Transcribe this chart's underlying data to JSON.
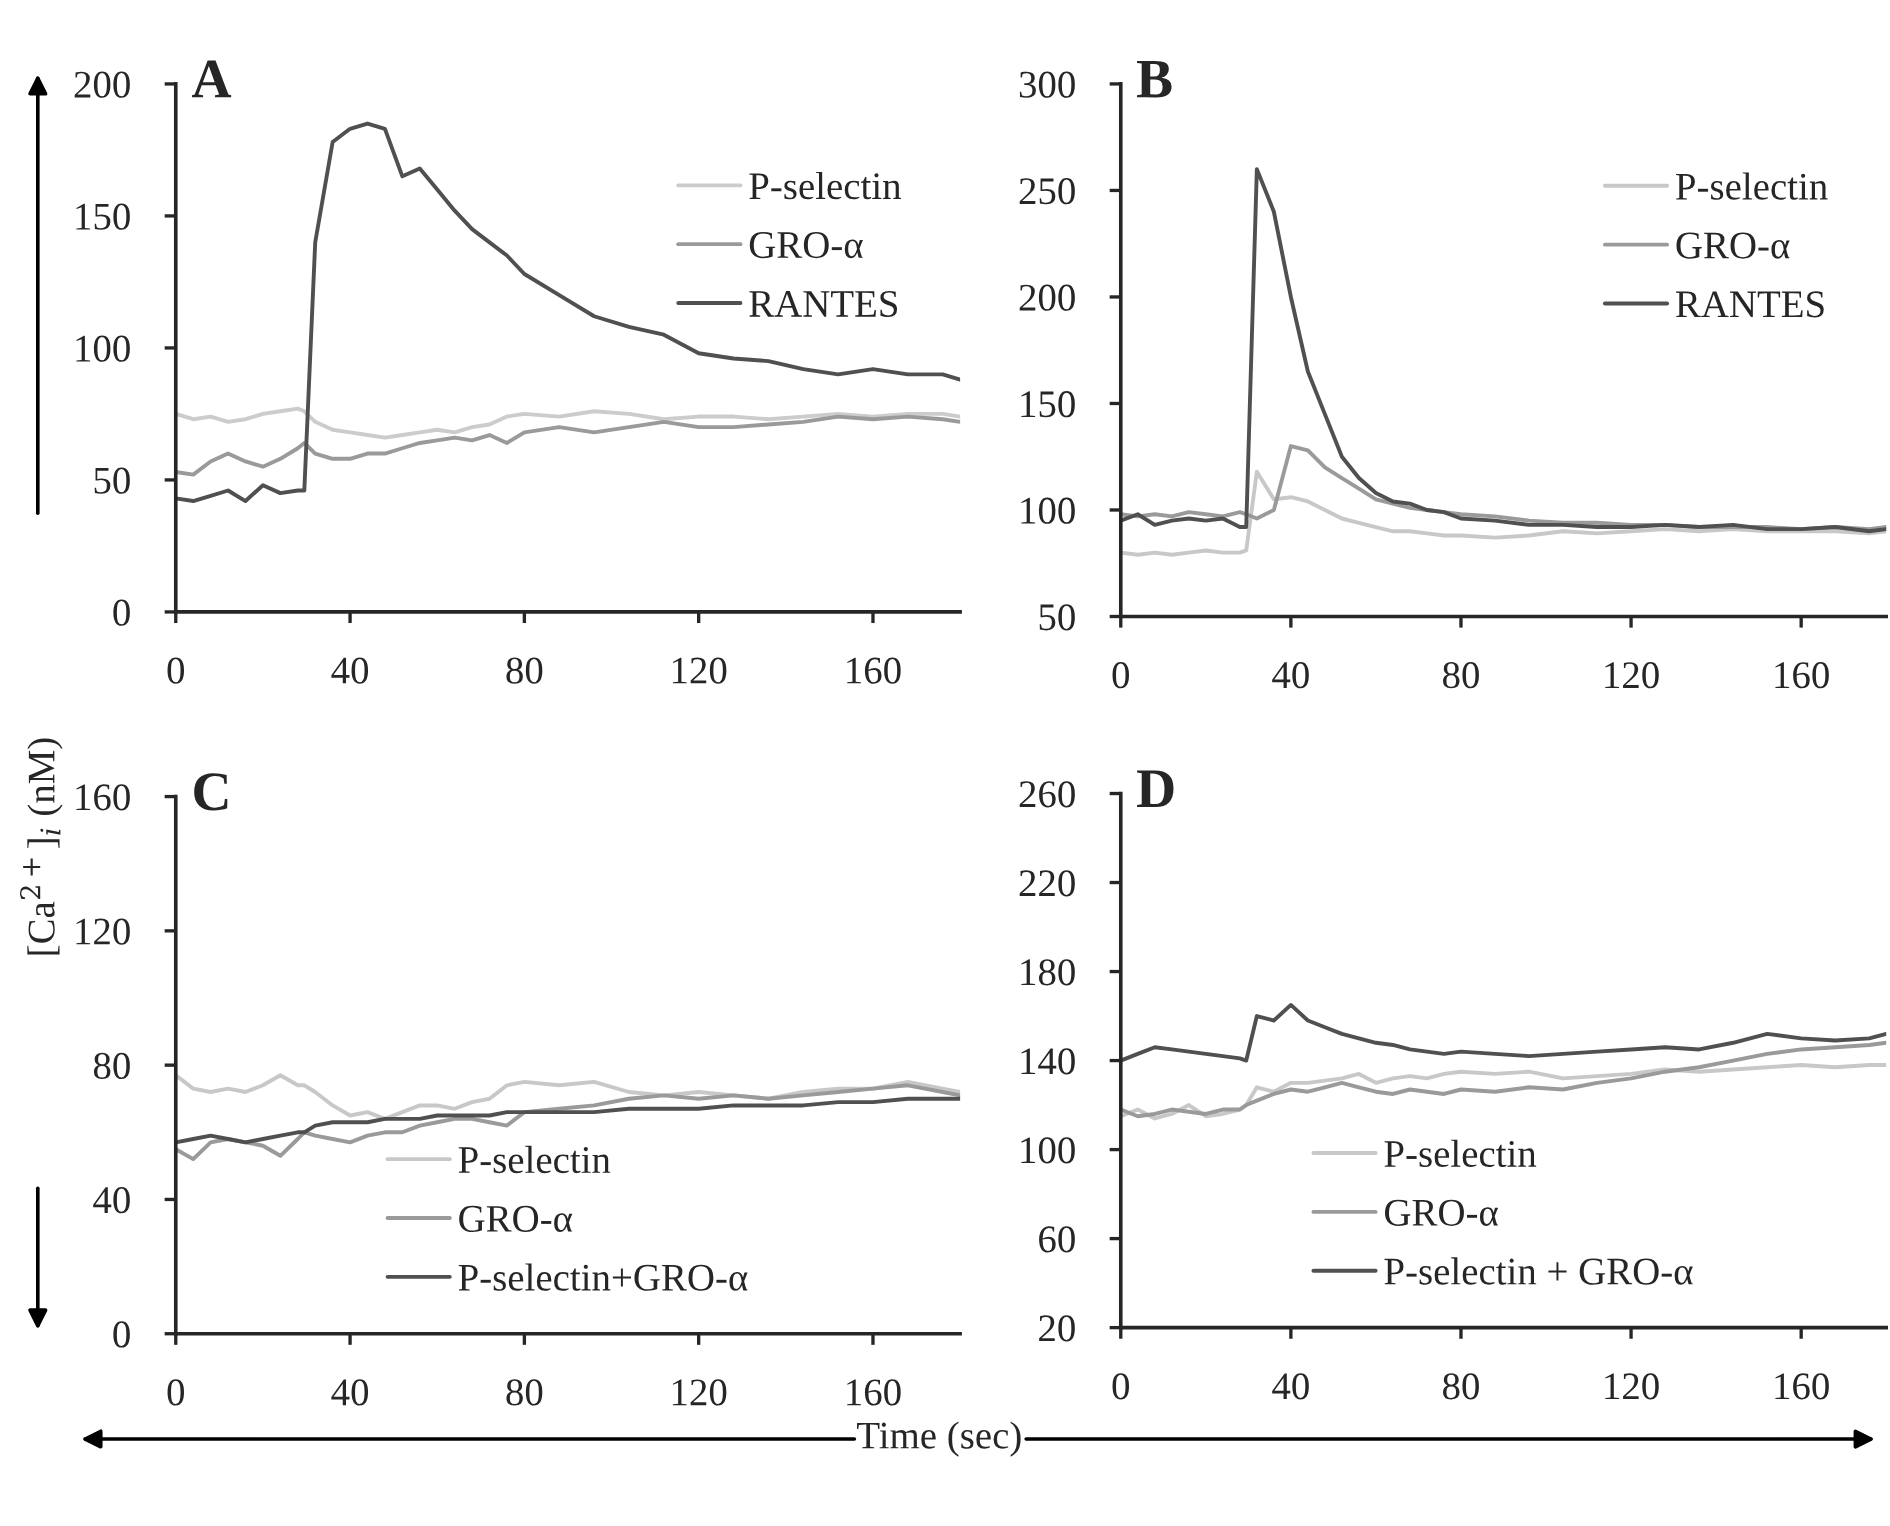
{
  "chart_data": [
    {
      "type": "line",
      "title": "A",
      "ylabel": "[Ca$^{2+}$]$_{i}$ (nM)",
      "xlim": [
        0,
        180
      ],
      "xticks": [
        0,
        40,
        80,
        120,
        160
      ],
      "ylim": [
        0,
        200
      ],
      "yticks": [
        0,
        50,
        100,
        150,
        200
      ],
      "legend": "top right",
      "grid": false,
      "x": [
        0,
        4,
        8,
        12,
        16,
        20,
        24,
        28,
        29.5,
        32,
        36,
        40,
        44,
        48,
        52,
        56,
        60,
        64,
        68,
        72,
        76,
        80,
        88,
        96,
        104,
        112,
        120,
        128,
        136,
        144,
        152,
        160,
        168,
        176,
        180
      ],
      "series": [
        {
          "name": "P-selectin",
          "color": "#cccccc",
          "values": [
            75,
            73,
            74,
            72,
            73,
            75,
            76,
            77,
            76,
            72,
            69,
            68,
            67,
            66,
            67,
            68,
            69,
            68,
            70,
            71,
            74,
            75,
            74,
            76,
            75,
            73,
            74,
            74,
            73,
            74,
            75,
            74,
            75,
            75,
            74
          ]
        },
        {
          "name": "GRO-α",
          "color": "#9a9a9a",
          "values": [
            53,
            52,
            57,
            60,
            57,
            55,
            58,
            62,
            64,
            60,
            58,
            58,
            60,
            60,
            62,
            64,
            65,
            66,
            65,
            67,
            64,
            68,
            70,
            68,
            70,
            72,
            70,
            70,
            71,
            72,
            74,
            73,
            74,
            73,
            72
          ]
        },
        {
          "name": "RANTES",
          "color": "#505050",
          "values": [
            43,
            42,
            44,
            46,
            42,
            48,
            45,
            46,
            46,
            140,
            178,
            183,
            185,
            183,
            165,
            168,
            160,
            152,
            145,
            140,
            135,
            128,
            120,
            112,
            108,
            105,
            98,
            96,
            95,
            92,
            90,
            92,
            90,
            90,
            88
          ]
        }
      ]
    },
    {
      "type": "line",
      "title": "B",
      "xlim": [
        0,
        180
      ],
      "xticks": [
        0,
        40,
        80,
        120,
        160
      ],
      "ylim": [
        50,
        300
      ],
      "yticks": [
        50,
        100,
        150,
        200,
        250,
        300
      ],
      "legend": "top right",
      "grid": false,
      "x": [
        0,
        4,
        8,
        12,
        16,
        20,
        24,
        28,
        29.5,
        32,
        36,
        40,
        44,
        48,
        52,
        56,
        60,
        64,
        68,
        72,
        76,
        80,
        88,
        96,
        104,
        112,
        120,
        128,
        136,
        144,
        152,
        160,
        168,
        176,
        180
      ],
      "series": [
        {
          "name": "P-selectin",
          "color": "#c8c8c8",
          "values": [
            80,
            79,
            80,
            79,
            80,
            81,
            80,
            80,
            81,
            118,
            105,
            106,
            104,
            100,
            96,
            94,
            92,
            90,
            90,
            89,
            88,
            88,
            87,
            88,
            90,
            89,
            90,
            91,
            90,
            91,
            90,
            90,
            90,
            89,
            90
          ]
        },
        {
          "name": "GRO-α",
          "color": "#9a9a9a",
          "values": [
            98,
            97,
            98,
            97,
            99,
            98,
            97,
            99,
            98,
            96,
            100,
            130,
            128,
            120,
            115,
            110,
            105,
            103,
            101,
            100,
            99,
            98,
            97,
            95,
            94,
            94,
            93,
            93,
            92,
            92,
            92,
            91,
            92,
            91,
            92
          ]
        },
        {
          "name": "RANTES",
          "color": "#505050",
          "values": [
            95,
            98,
            93,
            95,
            96,
            95,
            96,
            92,
            92,
            260,
            240,
            200,
            165,
            145,
            125,
            115,
            108,
            104,
            103,
            100,
            99,
            96,
            95,
            93,
            93,
            92,
            92,
            93,
            92,
            93,
            91,
            91,
            92,
            90,
            91
          ]
        }
      ]
    },
    {
      "type": "line",
      "title": "C",
      "xlabel": "Time (sec)",
      "xlim": [
        0,
        180
      ],
      "xticks": [
        0,
        40,
        80,
        120,
        160
      ],
      "ylim": [
        0,
        160
      ],
      "yticks": [
        0,
        40,
        80,
        120,
        160
      ],
      "legend": "bottom",
      "grid": false,
      "x": [
        0,
        4,
        8,
        12,
        16,
        20,
        24,
        28,
        29.5,
        32,
        36,
        40,
        44,
        48,
        52,
        56,
        60,
        64,
        68,
        72,
        76,
        80,
        88,
        96,
        104,
        112,
        120,
        128,
        136,
        144,
        152,
        160,
        168,
        176,
        180
      ],
      "series": [
        {
          "name": "P-selectin",
          "color": "#c8c8c8",
          "values": [
            77,
            73,
            72,
            73,
            72,
            74,
            77,
            74,
            74,
            72,
            68,
            65,
            66,
            64,
            66,
            68,
            68,
            67,
            69,
            70,
            74,
            75,
            74,
            75,
            72,
            71,
            72,
            71,
            70,
            72,
            73,
            73,
            75,
            73,
            72
          ]
        },
        {
          "name": "GRO-α",
          "color": "#9a9a9a",
          "values": [
            55,
            52,
            57,
            58,
            57,
            56,
            53,
            58,
            60,
            59,
            58,
            57,
            59,
            60,
            60,
            62,
            63,
            64,
            64,
            63,
            62,
            66,
            67,
            68,
            70,
            71,
            70,
            71,
            70,
            71,
            72,
            73,
            74,
            72,
            71
          ]
        },
        {
          "name": "P-selectin+GRO-α",
          "color": "#505050",
          "values": [
            57,
            58,
            59,
            58,
            57,
            58,
            59,
            60,
            60,
            62,
            63,
            63,
            63,
            64,
            64,
            64,
            65,
            65,
            65,
            65,
            66,
            66,
            66,
            66,
            67,
            67,
            67,
            68,
            68,
            68,
            69,
            69,
            70,
            70,
            70
          ]
        }
      ]
    },
    {
      "type": "line",
      "title": "D",
      "xlim": [
        0,
        180
      ],
      "xticks": [
        0,
        40,
        80,
        120,
        160
      ],
      "ylim": [
        20,
        260
      ],
      "yticks": [
        20,
        60,
        100,
        140,
        180,
        220,
        260
      ],
      "legend": "bottom",
      "grid": false,
      "x": [
        0,
        4,
        8,
        12,
        16,
        20,
        24,
        28,
        29.5,
        32,
        36,
        40,
        44,
        48,
        52,
        56,
        60,
        64,
        68,
        72,
        76,
        80,
        88,
        96,
        104,
        112,
        120,
        128,
        136,
        144,
        152,
        160,
        168,
        176,
        180
      ],
      "series": [
        {
          "name": "P-selectin",
          "color": "#c8c8c8",
          "values": [
            115,
            118,
            114,
            116,
            120,
            115,
            116,
            118,
            120,
            128,
            126,
            130,
            130,
            131,
            132,
            134,
            130,
            132,
            133,
            132,
            134,
            135,
            134,
            135,
            132,
            133,
            134,
            136,
            135,
            136,
            137,
            138,
            137,
            138,
            138
          ]
        },
        {
          "name": "GRO-α",
          "color": "#9a9a9a",
          "values": [
            118,
            115,
            116,
            118,
            117,
            116,
            118,
            118,
            120,
            122,
            125,
            127,
            126,
            128,
            130,
            128,
            126,
            125,
            127,
            126,
            125,
            127,
            126,
            128,
            127,
            130,
            132,
            135,
            137,
            140,
            143,
            145,
            146,
            147,
            148
          ]
        },
        {
          "name": "P-selectin + GRO-α",
          "color": "#505050",
          "values": [
            140,
            143,
            146,
            145,
            144,
            143,
            142,
            141,
            140,
            160,
            158,
            165,
            158,
            155,
            152,
            150,
            148,
            147,
            145,
            144,
            143,
            144,
            143,
            142,
            143,
            144,
            145,
            146,
            145,
            148,
            152,
            150,
            149,
            150,
            152
          ]
        }
      ]
    }
  ]
}
